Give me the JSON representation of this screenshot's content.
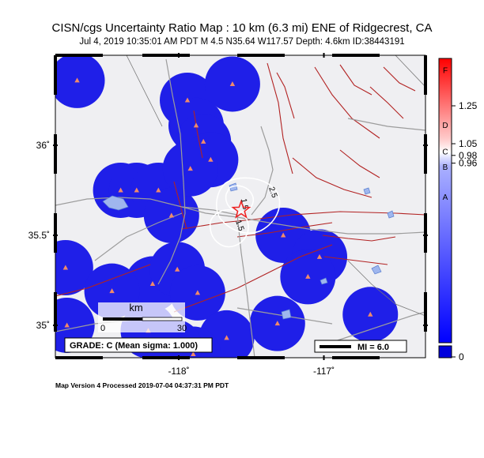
{
  "title": "CISN/cgs Uncertainty Ratio Map : 10 km (6.3 mi) ENE of Ridgecrest, CA",
  "subtitle": "Jul  4, 2019 10:35:01 AM PDT   M 4.5   N35.64 W117.57   Depth: 4.6km   ID:38443191",
  "footer": "Map Version 4 Processed 2019-07-04 04:37:31 PM PDT",
  "grade_box": "GRADE: C (Mean sigma: 1.000)",
  "mi_scale": "MI = 6.0",
  "scale_bar": {
    "unit": "km",
    "start": "0",
    "end": "30"
  },
  "axes": {
    "x_ticks": [
      {
        "label": "-118˚",
        "lon": -118
      },
      {
        "label": "-117˚",
        "lon": -117
      }
    ],
    "y_ticks": [
      {
        "label": "36˚",
        "lat": 36
      },
      {
        "label": "35.5˚",
        "lat": 35.5
      },
      {
        "label": "35˚",
        "lat": 35
      }
    ],
    "lon_range": [
      -118.85,
      -116.3
    ],
    "lat_range": [
      34.82,
      36.5
    ]
  },
  "epicenter": {
    "lon": -117.57,
    "lat": 35.64,
    "color": "#ee2222"
  },
  "contours": [
    "1.5",
    "2.5",
    "1.5"
  ],
  "colorbar": {
    "range": [
      0,
      1.5
    ],
    "ticks": [
      {
        "label": "1.25",
        "value": 1.25
      },
      {
        "label": "1.05",
        "value": 1.05
      },
      {
        "label": "0.98",
        "value": 0.98
      },
      {
        "label": "0.96",
        "value": 0.96
      },
      {
        "label": "0",
        "value": 0
      }
    ],
    "grades": [
      {
        "label": "F",
        "value": 1.44
      },
      {
        "label": "D",
        "value": 1.15
      },
      {
        "label": "C",
        "value": 1.01
      },
      {
        "label": "B",
        "value": 0.93
      },
      {
        "label": "A",
        "value": 0.77
      }
    ],
    "colors": {
      "high": "#ff0000",
      "mid": "#ffffff",
      "low": "#0000ff"
    }
  },
  "stations": [
    {
      "lon": -118.7,
      "lat": 36.36
    },
    {
      "lon": -118.78,
      "lat": 35.32
    },
    {
      "lon": -118.77,
      "lat": 35.0
    },
    {
      "lon": -118.4,
      "lat": 35.75
    },
    {
      "lon": -118.29,
      "lat": 35.75
    },
    {
      "lon": -118.14,
      "lat": 35.75
    },
    {
      "lon": -118.05,
      "lat": 35.61
    },
    {
      "lon": -118.18,
      "lat": 35.23
    },
    {
      "lon": -118.21,
      "lat": 34.97
    },
    {
      "lon": -118.46,
      "lat": 35.19
    },
    {
      "lon": -118.01,
      "lat": 35.31
    },
    {
      "lon": -117.87,
      "lat": 35.18
    },
    {
      "lon": -117.94,
      "lat": 36.25
    },
    {
      "lon": -117.88,
      "lat": 36.11
    },
    {
      "lon": -117.83,
      "lat": 36.02
    },
    {
      "lon": -117.78,
      "lat": 35.92
    },
    {
      "lon": -117.92,
      "lat": 35.87
    },
    {
      "lon": -117.63,
      "lat": 36.34
    },
    {
      "lon": -117.28,
      "lat": 35.5
    },
    {
      "lon": -117.03,
      "lat": 35.38
    },
    {
      "lon": -117.11,
      "lat": 35.27
    },
    {
      "lon": -117.32,
      "lat": 35.01
    },
    {
      "lon": -116.68,
      "lat": 35.06
    },
    {
      "lon": -117.67,
      "lat": 34.93
    },
    {
      "lon": -117.9,
      "lat": 34.84
    },
    {
      "lon": -118.03,
      "lat": 34.88
    }
  ]
}
